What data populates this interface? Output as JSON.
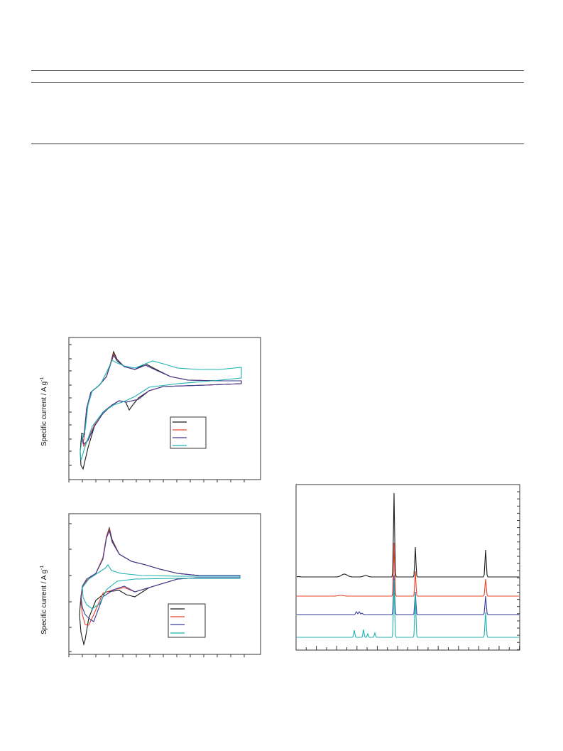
{
  "cv_top": {
    "ylabel": "Specific current / A g",
    "ylabel_sup": "-1"
  },
  "cv_bottom": {
    "ylabel": "Specific current / A g",
    "ylabel_sup": "-1"
  },
  "colors": {
    "black": "#1a1a1a",
    "red": "#e8442a",
    "blue": "#3a3a9a",
    "cyan": "#1cb2b0"
  },
  "chart_data": [
    {
      "type": "line",
      "title": "",
      "xlabel": "",
      "ylabel": "Specific current / A g-1",
      "legend": "bottom-right",
      "series": [
        {
          "color": "#1a1a1a",
          "shape": "cyclic voltammogram with oxidation peak near x=0.23 and reduction dip near x=0.05"
        },
        {
          "color": "#e8442a",
          "shape": "cyclic voltammogram"
        },
        {
          "color": "#3a3a9a",
          "shape": "cyclic voltammogram"
        },
        {
          "color": "#1cb2b0",
          "shape": "cyclic voltammogram, broader plateau"
        }
      ]
    },
    {
      "type": "line",
      "title": "",
      "xlabel": "",
      "ylabel": "Specific current / A g-1",
      "legend": "bottom-right",
      "series": [
        {
          "color": "#1a1a1a"
        },
        {
          "color": "#e8442a"
        },
        {
          "color": "#3a3a9a"
        },
        {
          "color": "#1cb2b0"
        }
      ]
    },
    {
      "type": "line",
      "title": "",
      "xlabel": "",
      "ylabel": "",
      "series": [
        {
          "color": "#1a1a1a"
        },
        {
          "color": "#e8442a"
        },
        {
          "color": "#3a3a9a"
        },
        {
          "color": "#1cb2b0"
        }
      ]
    }
  ]
}
